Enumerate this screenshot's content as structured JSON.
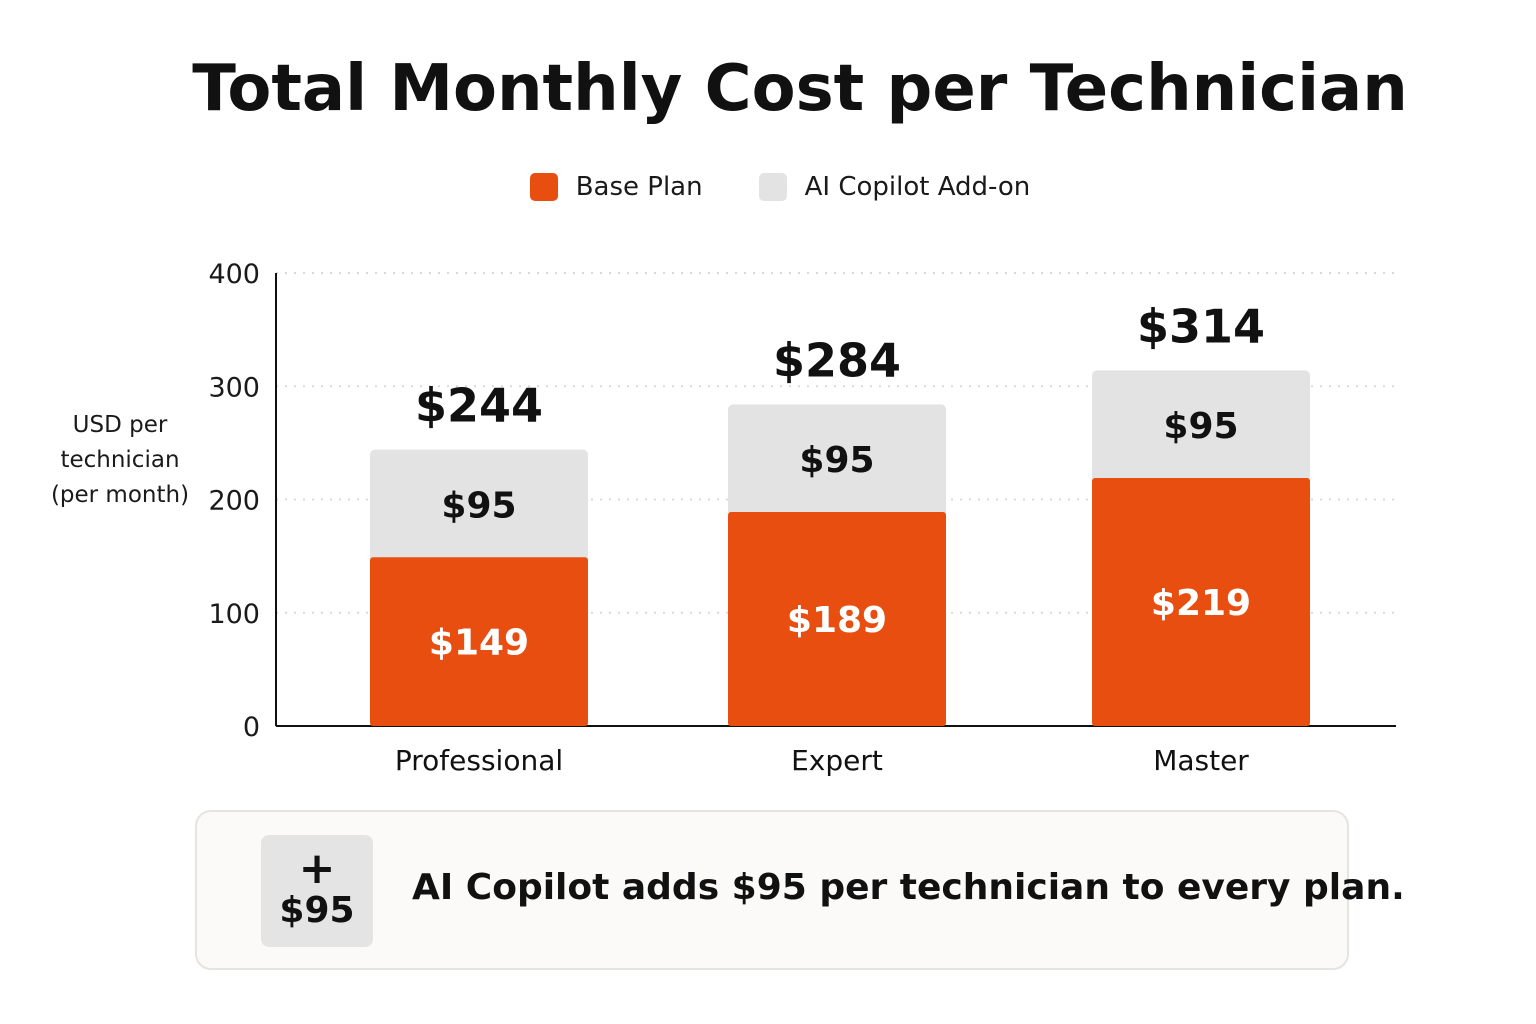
{
  "chart_data": {
    "type": "bar",
    "stacked": true,
    "title": "Total Monthly Cost per Technician",
    "ylabel": "USD per technician (per month)",
    "xlabel": "",
    "ylim": [
      0,
      400
    ],
    "yticks": [
      0,
      100,
      200,
      300,
      400
    ],
    "grid": true,
    "legend_position": "top-center",
    "categories": [
      "Professional",
      "Expert",
      "Master"
    ],
    "series": [
      {
        "name": "Base Plan",
        "values": [
          149,
          189,
          219
        ],
        "labels": [
          "$149",
          "$189",
          "$219"
        ],
        "color": "#e84e0f"
      },
      {
        "name": "AI Copilot Add-on",
        "values": [
          95,
          95,
          95
        ],
        "labels": [
          "$95",
          "$95",
          "$95"
        ],
        "color": "#e3e3e3"
      }
    ],
    "totals": [
      "$244",
      "$284",
      "$314"
    ]
  },
  "note": {
    "badge_plus": "+",
    "badge_amount": "$95",
    "text": "AI Copilot adds $95 per technician to every plan."
  }
}
